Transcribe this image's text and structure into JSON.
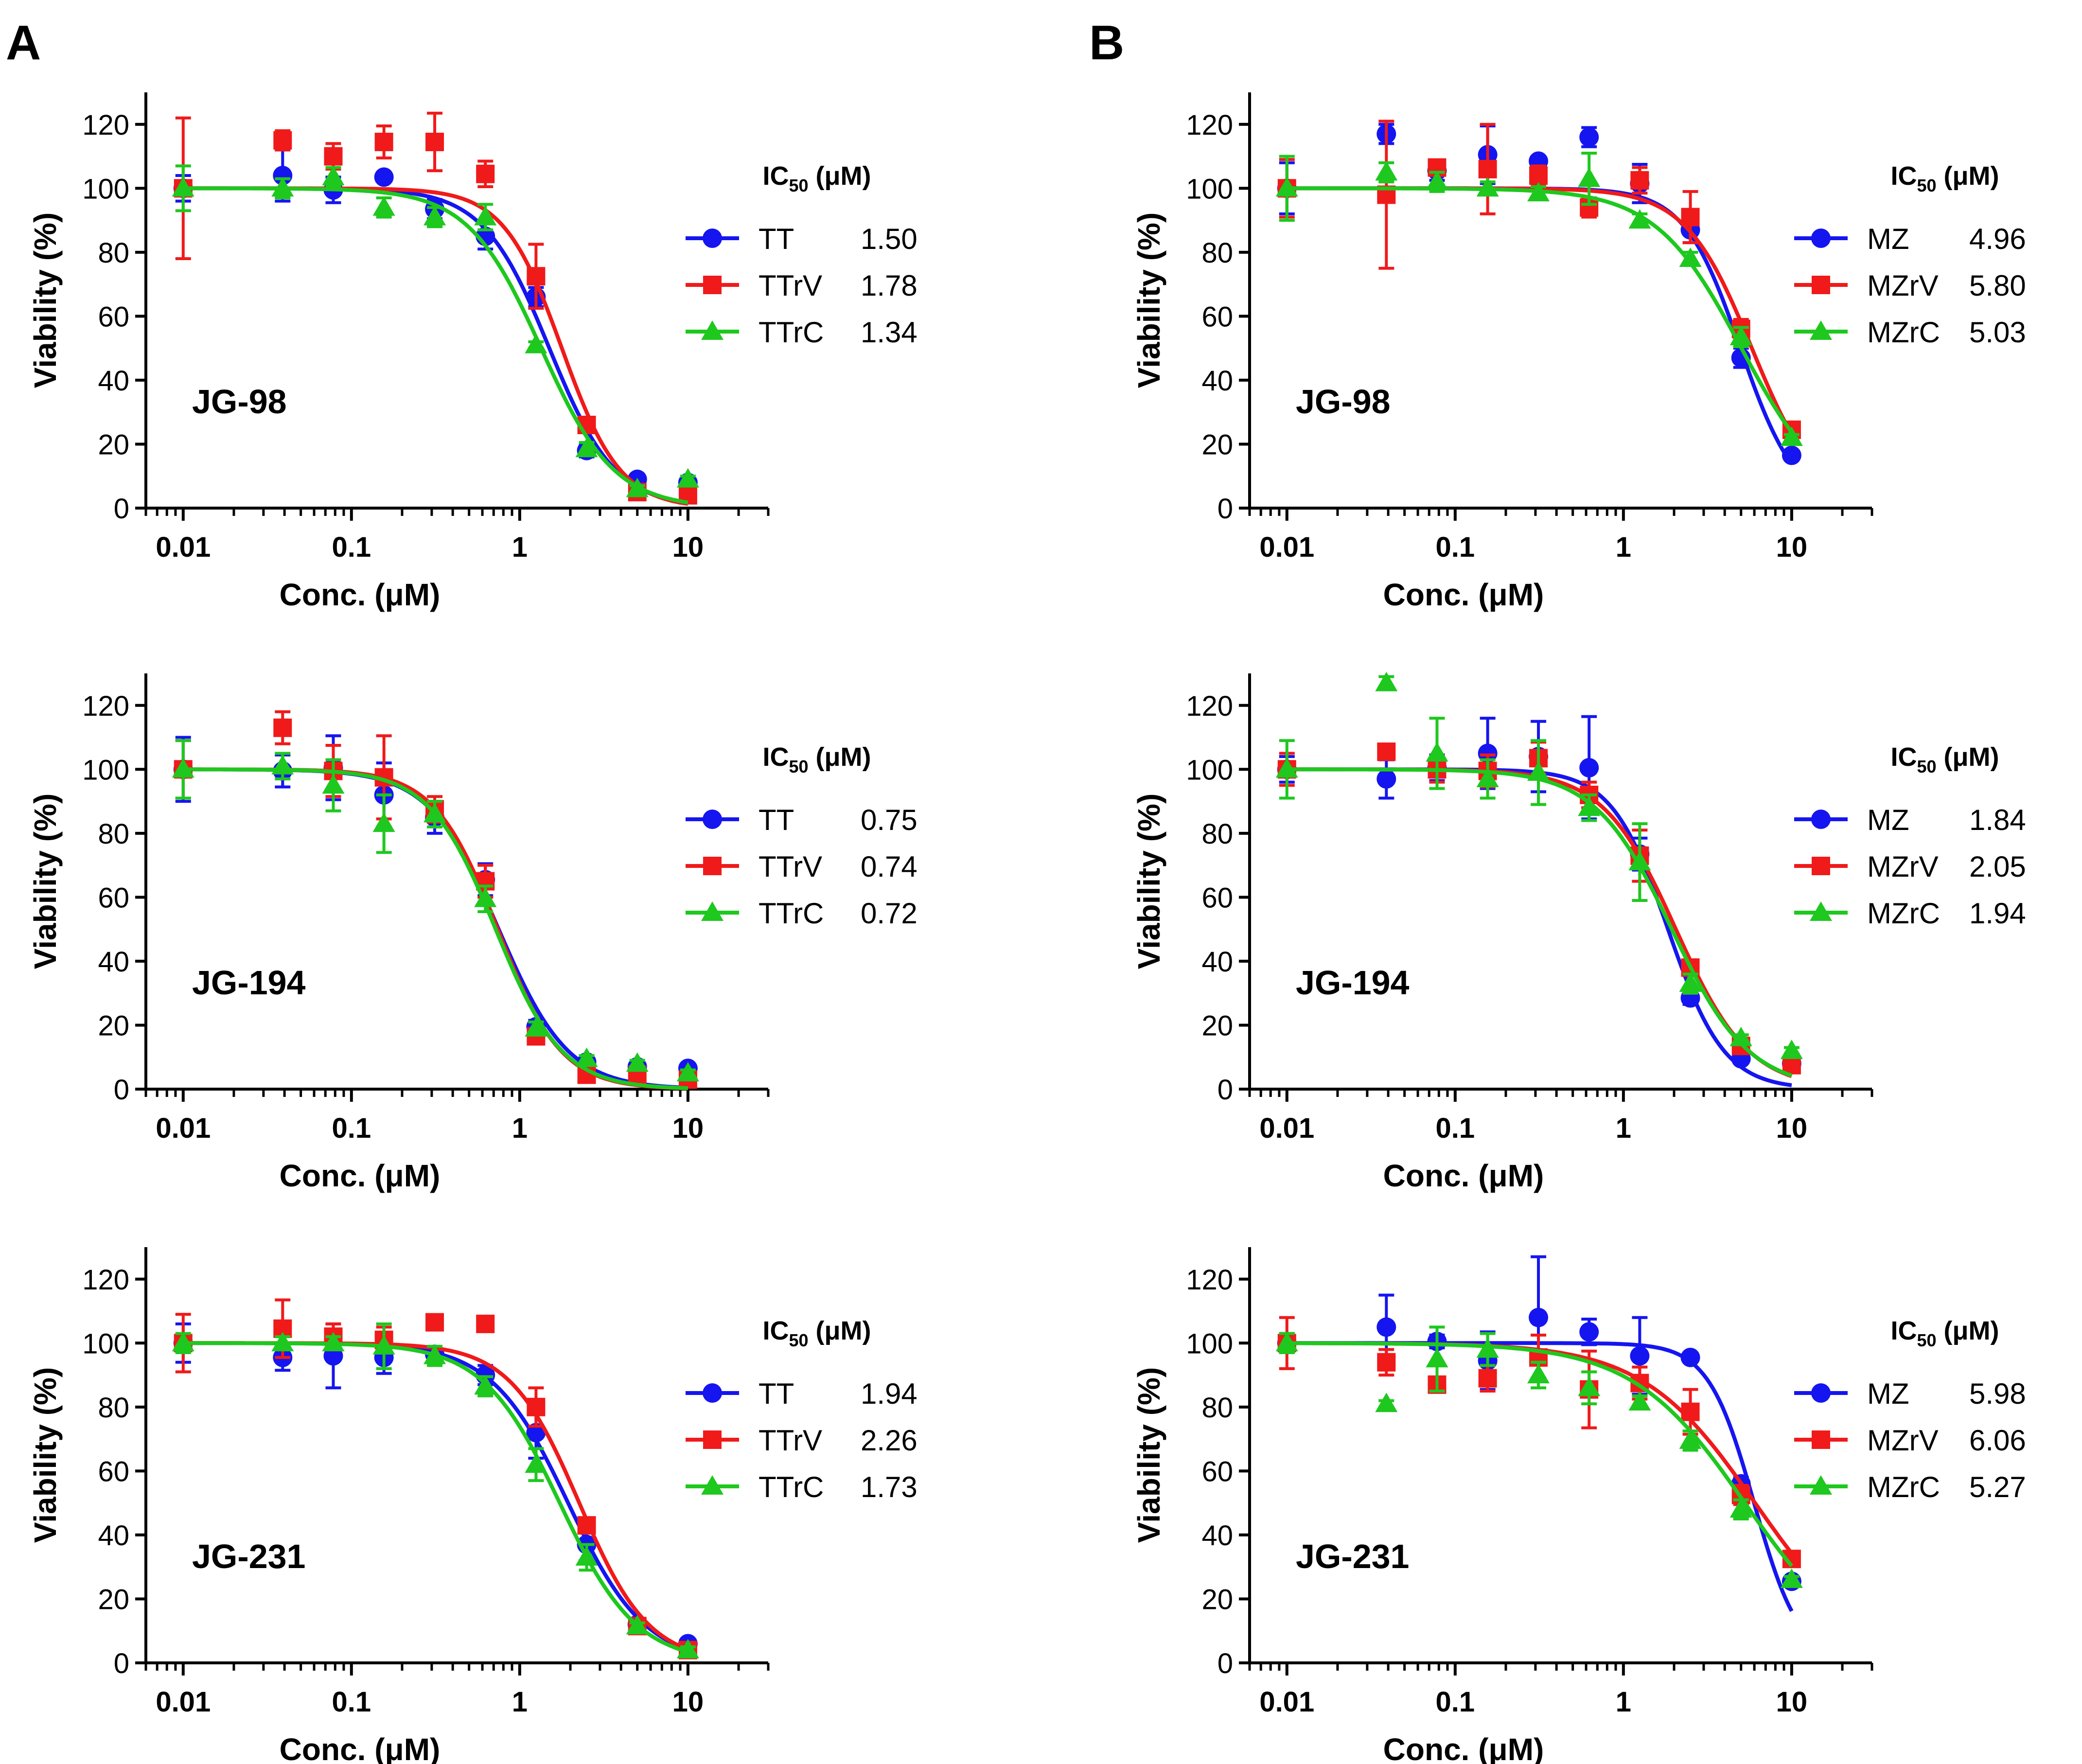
{
  "figure": {
    "panel_labels": [
      "A",
      "B"
    ],
    "legend_header": {
      "main": "IC",
      "sub": "50",
      "unit": " (μM)"
    }
  },
  "series_styles": {
    "blue": {
      "color": "#1515f0",
      "marker": "circle"
    },
    "red": {
      "color": "#f01a1a",
      "marker": "square"
    },
    "green": {
      "color": "#1ec81e",
      "marker": "triangle"
    }
  },
  "concentrations": [
    0.01,
    0.039,
    0.078,
    0.156,
    0.3125,
    0.625,
    1.25,
    2.5,
    5,
    10
  ],
  "chart_data": [
    {
      "type": "scatter",
      "panel": "A",
      "compound": "JG-98",
      "xlabel": "Conc. (μM)",
      "ylabel": "Viability (%)",
      "xscale": "log",
      "xlim": [
        0.006,
        30
      ],
      "ylim": [
        0,
        130
      ],
      "xticks": [
        "0.01",
        "0.1",
        "1",
        "10"
      ],
      "yticks": [
        "0",
        "20",
        "40",
        "60",
        "80",
        "100",
        "120"
      ],
      "legend": "right",
      "series": [
        {
          "name": "TT",
          "style": "blue",
          "ic50": "1.50",
          "hill": 2.2,
          "y": [
            100,
            104,
            99.5,
            103.5,
            93.5,
            85,
            66,
            18,
            9,
            8
          ],
          "err": [
            4,
            8,
            4,
            0,
            3,
            4,
            3,
            2,
            1,
            1
          ]
        },
        {
          "name": "TTrV",
          "style": "red",
          "ic50": "1.78",
          "hill": 2.5,
          "y": [
            100,
            115,
            110,
            114.5,
            114.5,
            104.5,
            72.5,
            26,
            5,
            4
          ],
          "err": [
            22,
            3,
            4,
            5,
            9,
            4,
            10,
            2,
            1,
            1
          ]
        },
        {
          "name": "TTrC",
          "style": "green",
          "ic50": "1.34",
          "hill": 2.0,
          "y": [
            100,
            100,
            103.5,
            94,
            91,
            91,
            51,
            18.5,
            6,
            9
          ],
          "err": [
            7,
            3,
            3,
            3,
            3,
            4,
            1,
            2,
            1,
            1
          ]
        }
      ]
    },
    {
      "type": "scatter",
      "panel": "A",
      "compound": "JG-194",
      "xlabel": "Conc. (μM)",
      "ylabel": "Viability (%)",
      "xscale": "log",
      "xlim": [
        0.006,
        30
      ],
      "ylim": [
        0,
        130
      ],
      "xticks": [
        "0.01",
        "0.1",
        "1",
        "10"
      ],
      "yticks": [
        "0",
        "20",
        "40",
        "60",
        "80",
        "100",
        "120"
      ],
      "legend": "right",
      "series": [
        {
          "name": "TT",
          "style": "blue",
          "ic50": "0.75",
          "hill": 2.1,
          "y": [
            100,
            99.5,
            100.5,
            92,
            85,
            65.5,
            19.5,
            8.5,
            7,
            6.5
          ],
          "err": [
            10,
            5,
            10,
            10,
            5,
            5,
            2,
            1,
            1,
            1
          ]
        },
        {
          "name": "TTrV",
          "style": "red",
          "ic50": "0.74",
          "hill": 2.3,
          "y": [
            100,
            113,
            99.5,
            97.5,
            87.5,
            65,
            16.5,
            4.5,
            4.5,
            3
          ],
          "err": [
            9,
            5,
            8,
            13,
            4,
            5,
            2,
            1,
            1,
            1
          ]
        },
        {
          "name": "TTrC",
          "style": "green",
          "ic50": "0.72",
          "hill": 2.2,
          "y": [
            100,
            101,
            95,
            83,
            86,
            59.5,
            19,
            9.5,
            8,
            5
          ],
          "err": [
            9,
            4,
            8,
            9,
            4,
            4,
            2,
            1,
            1,
            1
          ]
        }
      ]
    },
    {
      "type": "scatter",
      "panel": "A",
      "compound": "JG-231",
      "xlabel": "Conc. (μM)",
      "ylabel": "Viability (%)",
      "xscale": "log",
      "xlim": [
        0.006,
        30
      ],
      "ylim": [
        0,
        130
      ],
      "xticks": [
        "0.01",
        "0.1",
        "1",
        "10"
      ],
      "yticks": [
        "0",
        "20",
        "40",
        "60",
        "80",
        "100",
        "120"
      ],
      "legend": "right",
      "series": [
        {
          "name": "TT",
          "style": "blue",
          "ic50": "1.94",
          "hill": 1.9,
          "y": [
            100,
            95.5,
            96,
            95.5,
            96.5,
            90,
            72,
            37,
            12,
            6
          ],
          "err": [
            6,
            4,
            10,
            5,
            2,
            3,
            8,
            5,
            1,
            1
          ]
        },
        {
          "name": "TTrV",
          "style": "red",
          "ic50": "2.26",
          "hill": 2.1,
          "y": [
            100,
            104.5,
            102,
            101,
            106.5,
            106,
            80,
            43,
            11.5,
            4
          ],
          "err": [
            9,
            9,
            4,
            4,
            1,
            2,
            6,
            2,
            1,
            1
          ]
        },
        {
          "name": "TTrC",
          "style": "green",
          "ic50": "1.73",
          "hill": 1.9,
          "y": [
            100,
            100,
            100,
            99,
            96,
            86.5,
            62,
            33,
            11.5,
            4
          ],
          "err": [
            3,
            2,
            2,
            7,
            3,
            3,
            5,
            4,
            1,
            1
          ]
        }
      ]
    },
    {
      "type": "scatter",
      "panel": "B",
      "compound": "JG-98",
      "xlabel": "Conc. (μM)",
      "ylabel": "Viability (%)",
      "xscale": "log",
      "xlim": [
        0.006,
        30
      ],
      "ylim": [
        0,
        130
      ],
      "xticks": [
        "0.01",
        "0.1",
        "1",
        "10"
      ],
      "yticks": [
        "0",
        "20",
        "40",
        "60",
        "80",
        "100",
        "120"
      ],
      "legend": "right",
      "series": [
        {
          "name": "MZ",
          "style": "blue",
          "ic50": "4.96",
          "hill": 2.6,
          "y": [
            100,
            117,
            105.5,
            110.5,
            108.5,
            116,
            101.5,
            87,
            47,
            16.5
          ],
          "err": [
            8,
            3,
            3,
            9,
            1,
            3,
            6,
            4,
            3,
            1
          ]
        },
        {
          "name": "MZrV",
          "style": "red",
          "ic50": "5.80",
          "hill": 2.2,
          "y": [
            100,
            98,
            106.5,
            106,
            104,
            94,
            102.5,
            91,
            56,
            24.5
          ],
          "err": [
            9,
            23,
            2,
            14,
            3,
            3,
            4,
            8,
            3,
            1
          ]
        },
        {
          "name": "MZrC",
          "style": "green",
          "ic50": "5.03",
          "hill": 1.7,
          "y": [
            100,
            105,
            102,
            100,
            98.5,
            103,
            90,
            78,
            53.5,
            22
          ],
          "err": [
            10,
            3,
            3,
            2,
            2,
            8,
            2,
            2,
            3,
            1
          ]
        }
      ]
    },
    {
      "type": "scatter",
      "panel": "B",
      "compound": "JG-194",
      "xlabel": "Conc. (μM)",
      "ylabel": "Viability (%)",
      "xscale": "log",
      "xlim": [
        0.006,
        30
      ],
      "ylim": [
        0,
        130
      ],
      "xticks": [
        "0.01",
        "0.1",
        "1",
        "10"
      ],
      "yticks": [
        "0",
        "20",
        "40",
        "60",
        "80",
        "100",
        "120"
      ],
      "legend": "right",
      "series": [
        {
          "name": "MZ",
          "style": "blue",
          "ic50": "1.84",
          "hill": 2.6,
          "y": [
            100,
            97,
            100.5,
            105,
            104,
            100.5,
            73.5,
            28.5,
            9.5,
            8
          ],
          "err": [
            4,
            6,
            4,
            11,
            11,
            16,
            5,
            2,
            1,
            1
          ]
        },
        {
          "name": "MZrV",
          "style": "red",
          "ic50": "2.05",
          "hill": 2.0,
          "y": [
            100,
            105.5,
            100,
            99.5,
            103.5,
            92,
            73,
            38,
            13.5,
            7.5
          ],
          "err": [
            5,
            1,
            4,
            5,
            5,
            4,
            8,
            2,
            1,
            1
          ]
        },
        {
          "name": "MZrC",
          "style": "green",
          "ic50": "1.94",
          "hill": 1.9,
          "y": [
            100,
            127,
            105,
            97,
            99,
            88,
            71,
            33,
            16,
            12
          ],
          "err": [
            9,
            2,
            11,
            6,
            10,
            4,
            12,
            3,
            1,
            1
          ]
        }
      ]
    },
    {
      "type": "scatter",
      "panel": "B",
      "compound": "JG-231",
      "xlabel": "Conc. (μM)",
      "ylabel": "Viability (%)",
      "xscale": "log",
      "xlim": [
        0.006,
        30
      ],
      "ylim": [
        0,
        130
      ],
      "xticks": [
        "0.01",
        "0.1",
        "1",
        "10"
      ],
      "yticks": [
        "0",
        "20",
        "40",
        "60",
        "80",
        "100",
        "120"
      ],
      "legend": "right",
      "series": [
        {
          "name": "MZ",
          "style": "blue",
          "ic50": "5.98",
          "hill": 3.2,
          "y": [
            100,
            105,
            100.5,
            94.5,
            108,
            103.5,
            96,
            95.5,
            56,
            25.5
          ],
          "err": [
            3,
            10,
            2,
            9,
            19,
            4,
            12,
            1,
            2,
            1
          ]
        },
        {
          "name": "MZrV",
          "style": "red",
          "ic50": "6.06",
          "hill": 1.3,
          "y": [
            100,
            94,
            87,
            89,
            95.5,
            85.5,
            87.5,
            78.5,
            52.5,
            32.5
          ],
          "err": [
            8,
            4,
            1,
            4,
            7,
            12,
            5,
            7,
            3,
            1
          ]
        },
        {
          "name": "MZrC",
          "style": "green",
          "ic50": "5.27",
          "hill": 1.3,
          "y": [
            100,
            81,
            95,
            98,
            90,
            86,
            81.5,
            69.5,
            48,
            26
          ],
          "err": [
            3,
            1,
            10,
            5,
            4,
            5,
            2,
            3,
            3,
            1
          ]
        }
      ]
    }
  ]
}
